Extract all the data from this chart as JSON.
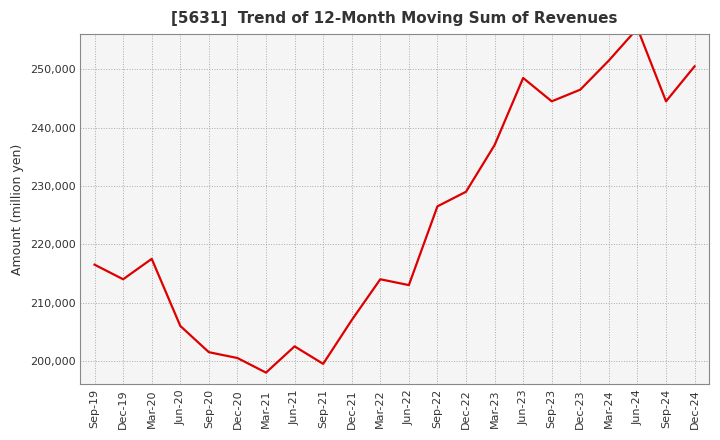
{
  "title": "[5631]  Trend of 12-Month Moving Sum of Revenues",
  "ylabel": "Amount (million yen)",
  "line_color": "#dd0000",
  "background_color": "#ffffff",
  "plot_bg_color": "#f5f5f5",
  "grid_color": "#aaaaaa",
  "title_color": "#333333",
  "x_labels": [
    "Sep-19",
    "Dec-19",
    "Mar-20",
    "Jun-20",
    "Sep-20",
    "Dec-20",
    "Mar-21",
    "Jun-21",
    "Sep-21",
    "Dec-21",
    "Mar-22",
    "Jun-22",
    "Sep-22",
    "Dec-22",
    "Mar-23",
    "Jun-23",
    "Sep-23",
    "Dec-23",
    "Mar-24",
    "Jun-24",
    "Sep-24",
    "Dec-24"
  ],
  "values": [
    216500,
    214000,
    217500,
    206000,
    201500,
    200500,
    198000,
    202500,
    199500,
    207000,
    214000,
    213000,
    226500,
    229000,
    237000,
    248500,
    244500,
    246500,
    251500,
    257000,
    244500,
    250500
  ],
  "ylim": [
    196000,
    256000
  ],
  "yticks": [
    200000,
    210000,
    220000,
    230000,
    240000,
    250000
  ],
  "title_fontsize": 11,
  "tick_fontsize": 8,
  "ylabel_fontsize": 9,
  "line_width": 1.6
}
